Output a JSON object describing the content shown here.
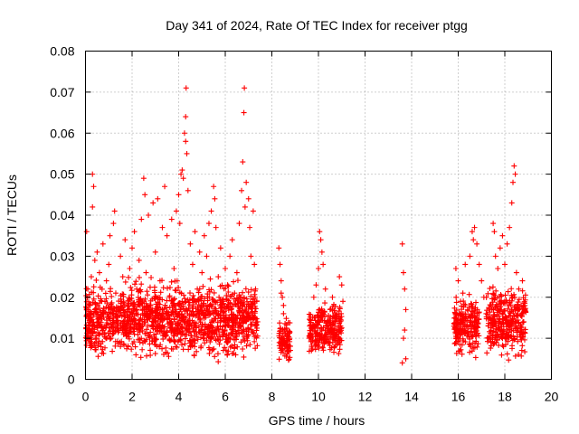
{
  "chart_data": {
    "type": "scatter",
    "title": "Day 341 of 2024, Rate Of TEC Index for receiver ptgg",
    "xlabel": "GPS time / hours",
    "ylabel": "ROTI / TECUs",
    "xlim": [
      0,
      20
    ],
    "ylim": [
      0,
      0.08
    ],
    "x_ticks": [
      0,
      2,
      4,
      6,
      8,
      10,
      12,
      14,
      16,
      18,
      20
    ],
    "x_tick_labels": [
      "0",
      "2",
      "4",
      "6",
      "8",
      "10",
      "12",
      "14",
      "16",
      "18",
      "20"
    ],
    "y_ticks": [
      0,
      0.01,
      0.02,
      0.03,
      0.04,
      0.05,
      0.06,
      0.07,
      0.08
    ],
    "y_tick_labels": [
      "0",
      "0.01",
      "0.02",
      "0.03",
      "0.04",
      "0.05",
      "0.06",
      "0.07",
      "0.08"
    ],
    "grid": true,
    "marker": "+",
    "series": [
      {
        "name": "ROTI",
        "color": "#ff0000",
        "points": [
          [
            0.05,
            0.036
          ],
          [
            0.1,
            0.022
          ],
          [
            0.15,
            0.012
          ],
          [
            0.2,
            0.018
          ],
          [
            0.25,
            0.025
          ],
          [
            0.3,
            0.05
          ],
          [
            0.3,
            0.042
          ],
          [
            0.35,
            0.047
          ],
          [
            0.4,
            0.029
          ],
          [
            0.45,
            0.009
          ],
          [
            0.5,
            0.031
          ],
          [
            0.55,
            0.014
          ],
          [
            0.6,
            0.026
          ],
          [
            0.7,
            0.019
          ],
          [
            0.75,
            0.033
          ],
          [
            0.8,
            0.011
          ],
          [
            0.9,
            0.024
          ],
          [
            1.0,
            0.028
          ],
          [
            1.05,
            0.035
          ],
          [
            1.1,
            0.016
          ],
          [
            1.2,
            0.038
          ],
          [
            1.25,
            0.041
          ],
          [
            1.3,
            0.021
          ],
          [
            1.4,
            0.013
          ],
          [
            1.5,
            0.03
          ],
          [
            1.6,
            0.025
          ],
          [
            1.7,
            0.034
          ],
          [
            1.8,
            0.017
          ],
          [
            1.9,
            0.027
          ],
          [
            2.0,
            0.032
          ],
          [
            2.1,
            0.036
          ],
          [
            2.2,
            0.022
          ],
          [
            2.3,
            0.029
          ],
          [
            2.4,
            0.039
          ],
          [
            2.5,
            0.049
          ],
          [
            2.55,
            0.045
          ],
          [
            2.6,
            0.026
          ],
          [
            2.7,
            0.04
          ],
          [
            2.8,
            0.018
          ],
          [
            2.9,
            0.043
          ],
          [
            3.0,
            0.031
          ],
          [
            3.1,
            0.044
          ],
          [
            3.2,
            0.024
          ],
          [
            3.3,
            0.037
          ],
          [
            3.4,
            0.047
          ],
          [
            3.5,
            0.035
          ],
          [
            3.6,
            0.02
          ],
          [
            3.7,
            0.039
          ],
          [
            3.8,
            0.027
          ],
          [
            3.9,
            0.041
          ],
          [
            4.0,
            0.045
          ],
          [
            4.05,
            0.038
          ],
          [
            4.1,
            0.05
          ],
          [
            4.15,
            0.051
          ],
          [
            4.2,
            0.049
          ],
          [
            4.25,
            0.06
          ],
          [
            4.3,
            0.058
          ],
          [
            4.3,
            0.064
          ],
          [
            4.32,
            0.071
          ],
          [
            4.35,
            0.055
          ],
          [
            4.4,
            0.046
          ],
          [
            4.5,
            0.033
          ],
          [
            4.6,
            0.028
          ],
          [
            4.7,
            0.036
          ],
          [
            4.8,
            0.022
          ],
          [
            4.9,
            0.031
          ],
          [
            5.0,
            0.026
          ],
          [
            5.1,
            0.035
          ],
          [
            5.2,
            0.03
          ],
          [
            5.3,
            0.038
          ],
          [
            5.4,
            0.041
          ],
          [
            5.5,
            0.047
          ],
          [
            5.55,
            0.044
          ],
          [
            5.6,
            0.037
          ],
          [
            5.7,
            0.025
          ],
          [
            5.8,
            0.032
          ],
          [
            5.9,
            0.019
          ],
          [
            6.0,
            0.027
          ],
          [
            6.1,
            0.023
          ],
          [
            6.2,
            0.03
          ],
          [
            6.3,
            0.034
          ],
          [
            6.4,
            0.021
          ],
          [
            6.5,
            0.026
          ],
          [
            6.6,
            0.038
          ],
          [
            6.7,
            0.046
          ],
          [
            6.75,
            0.053
          ],
          [
            6.8,
            0.065
          ],
          [
            6.82,
            0.071
          ],
          [
            6.85,
            0.042
          ],
          [
            6.9,
            0.048
          ],
          [
            7.0,
            0.044
          ],
          [
            7.05,
            0.037
          ],
          [
            7.1,
            0.03
          ],
          [
            7.2,
            0.041
          ],
          [
            7.25,
            0.028
          ],
          [
            7.3,
            0.022
          ],
          [
            7.35,
            0.019
          ],
          [
            8.3,
            0.032
          ],
          [
            8.35,
            0.028
          ],
          [
            8.4,
            0.024
          ],
          [
            8.45,
            0.02
          ],
          [
            8.5,
            0.016
          ],
          [
            8.55,
            0.012
          ],
          [
            8.6,
            0.009
          ],
          [
            8.5,
            0.018
          ],
          [
            8.4,
            0.021
          ],
          [
            9.6,
            0.01
          ],
          [
            9.7,
            0.007
          ],
          [
            9.8,
            0.02
          ],
          [
            9.9,
            0.023
          ],
          [
            10.0,
            0.027
          ],
          [
            10.05,
            0.036
          ],
          [
            10.1,
            0.034
          ],
          [
            10.15,
            0.031
          ],
          [
            10.2,
            0.028
          ],
          [
            10.3,
            0.022
          ],
          [
            10.4,
            0.013
          ],
          [
            10.5,
            0.017
          ],
          [
            10.6,
            0.02
          ],
          [
            10.7,
            0.015
          ],
          [
            10.8,
            0.011
          ],
          [
            10.9,
            0.025
          ],
          [
            11.0,
            0.023
          ],
          [
            11.05,
            0.019
          ],
          [
            13.6,
            0.033
          ],
          [
            13.65,
            0.026
          ],
          [
            13.7,
            0.022
          ],
          [
            13.75,
            0.017
          ],
          [
            13.7,
            0.012
          ],
          [
            13.65,
            0.01
          ],
          [
            13.75,
            0.005
          ],
          [
            13.6,
            0.004
          ],
          [
            15.9,
            0.027
          ],
          [
            16.0,
            0.024
          ],
          [
            16.1,
            0.019
          ],
          [
            16.2,
            0.021
          ],
          [
            16.3,
            0.028
          ],
          [
            16.4,
            0.017
          ],
          [
            16.5,
            0.03
          ],
          [
            16.6,
            0.036
          ],
          [
            16.65,
            0.034
          ],
          [
            16.7,
            0.037
          ],
          [
            16.8,
            0.033
          ],
          [
            16.9,
            0.028
          ],
          [
            17.0,
            0.024
          ],
          [
            17.1,
            0.02
          ],
          [
            17.2,
            0.016
          ],
          [
            17.3,
            0.013
          ],
          [
            17.4,
            0.009
          ],
          [
            17.5,
            0.038
          ],
          [
            17.55,
            0.036
          ],
          [
            17.6,
            0.03
          ],
          [
            17.7,
            0.027
          ],
          [
            17.8,
            0.032
          ],
          [
            17.9,
            0.035
          ],
          [
            18.0,
            0.028
          ],
          [
            18.1,
            0.033
          ],
          [
            18.2,
            0.037
          ],
          [
            18.3,
            0.043
          ],
          [
            18.35,
            0.048
          ],
          [
            18.4,
            0.052
          ],
          [
            18.45,
            0.05
          ],
          [
            18.5,
            0.026
          ],
          [
            18.6,
            0.022
          ],
          [
            18.7,
            0.018
          ],
          [
            18.8,
            0.014
          ],
          [
            18.75,
            0.011
          ]
        ],
        "dense_bands": [
          {
            "x": [
              0.0,
              7.4
            ],
            "y": [
              0.003,
              0.026
            ]
          },
          {
            "x": [
              8.3,
              8.8
            ],
            "y": [
              0.003,
              0.016
            ]
          },
          {
            "x": [
              9.6,
              11.0
            ],
            "y": [
              0.004,
              0.02
            ]
          },
          {
            "x": [
              15.8,
              16.9
            ],
            "y": [
              0.004,
              0.022
            ]
          },
          {
            "x": [
              17.2,
              18.9
            ],
            "y": [
              0.003,
              0.025
            ]
          }
        ]
      }
    ]
  }
}
